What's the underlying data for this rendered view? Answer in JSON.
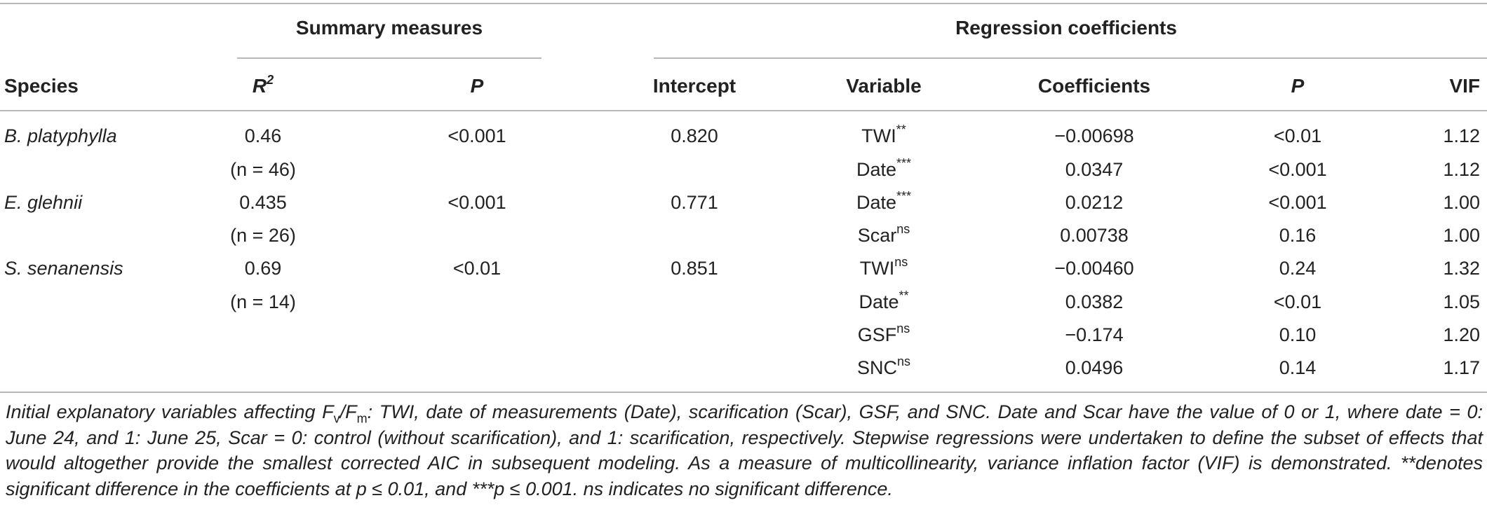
{
  "table": {
    "group_headers": {
      "summary": "Summary measures",
      "regression": "Regression coefficients"
    },
    "column_headers": {
      "species": "Species",
      "r2_base": "R",
      "r2_sup": "2",
      "p1": "P",
      "intercept": "Intercept",
      "variable": "Variable",
      "coefficients": "Coefficients",
      "p2": "P",
      "vif": "VIF"
    },
    "species": [
      {
        "name": "B. platyphylla",
        "r2": "0.46",
        "n": "(n = 46)",
        "p": "<0.001",
        "intercept": "0.820"
      },
      {
        "name": "E. glehnii",
        "r2": "0.435",
        "n": "(n = 26)",
        "p": "<0.001",
        "intercept": "0.771"
      },
      {
        "name": "S. senanensis",
        "r2": "0.69",
        "n": "(n = 14)",
        "p": "<0.01",
        "intercept": "0.851"
      }
    ],
    "rows": [
      {
        "variable": "TWI",
        "sig": "**",
        "coef": "−0.00698",
        "p": "<0.01",
        "vif": "1.12"
      },
      {
        "variable": "Date",
        "sig": "***",
        "coef": "0.0347",
        "p": "<0.001",
        "vif": "1.12"
      },
      {
        "variable": "Date",
        "sig": "***",
        "coef": "0.0212",
        "p": "<0.001",
        "vif": "1.00"
      },
      {
        "variable": "Scar",
        "sig": "ns",
        "coef": "0.00738",
        "p": "0.16",
        "vif": "1.00"
      },
      {
        "variable": "TWI",
        "sig": "ns",
        "coef": "−0.00460",
        "p": "0.24",
        "vif": "1.32"
      },
      {
        "variable": "Date",
        "sig": "**",
        "coef": "0.0382",
        "p": "<0.01",
        "vif": "1.05"
      },
      {
        "variable": "GSF",
        "sig": "ns",
        "coef": "−0.174",
        "p": "0.10",
        "vif": "1.20"
      },
      {
        "variable": "SNC",
        "sig": "ns",
        "coef": "0.0496",
        "p": "0.14",
        "vif": "1.17"
      }
    ]
  },
  "caption": {
    "part1": "Initial explanatory variables affecting F",
    "sub_v": "v",
    "slash": "/F",
    "sub_m": "m",
    "part2": ": TWI, date of measurements (Date), scarification (Scar), GSF, and SNC. Date and Scar have the value of 0 or 1, where date = 0: June 24, and 1: June 25, Scar = 0: control (without scarification), and 1: scarification, respectively. Stepwise regressions were undertaken to define the subset of effects that would altogether provide the smallest corrected AIC in subsequent modeling. As a measure of multicollinearity, variance inflation factor (VIF) is demonstrated. **denotes significant difference in the coefficients at p ≤ 0.01, and ***p ≤ 0.001. ns indicates no significant difference."
  }
}
